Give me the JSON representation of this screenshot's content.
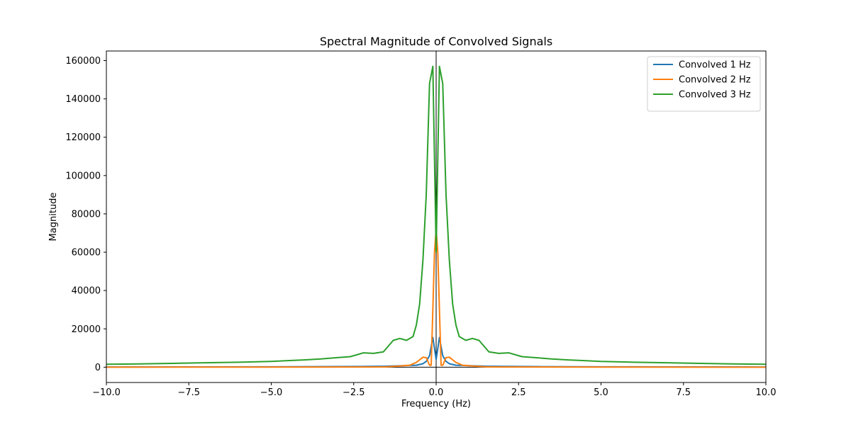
{
  "chart_data": {
    "type": "line",
    "title": "Spectral Magnitude of Convolved Signals",
    "xlabel": "Frequency (Hz)",
    "ylabel": "Magnitude",
    "xlim": [
      -10,
      10
    ],
    "ylim": [
      -8000,
      165000
    ],
    "xticks": [
      -10,
      -7.5,
      -5,
      -2.5,
      0,
      2.5,
      5,
      7.5,
      10
    ],
    "xtick_labels": [
      "−10.0",
      "−7.5",
      "−5.0",
      "−2.5",
      "0.0",
      "2.5",
      "5.0",
      "7.5",
      "10.0"
    ],
    "yticks": [
      0,
      20000,
      40000,
      60000,
      80000,
      100000,
      120000,
      140000,
      160000
    ],
    "ytick_labels": [
      "0",
      "20000",
      "40000",
      "60000",
      "80000",
      "100000",
      "120000",
      "140000",
      "160000"
    ],
    "grid": false,
    "legend_position": "top-right",
    "vline_x": 0,
    "hline_y": 0,
    "series": [
      {
        "name": "Convolved 1 Hz",
        "color": "#1f77b4",
        "x": [
          -10,
          -7.5,
          -5,
          -3,
          -2,
          -1.5,
          -1,
          -0.8,
          -0.6,
          -0.4,
          -0.3,
          -0.2,
          -0.1,
          0,
          0.1,
          0.2,
          0.3,
          0.4,
          0.6,
          0.8,
          1,
          1.5,
          2,
          3,
          5,
          7.5,
          10
        ],
        "y": [
          100,
          150,
          200,
          300,
          400,
          500,
          800,
          900,
          1000,
          1800,
          3000,
          6000,
          15500,
          4000,
          15500,
          6000,
          3000,
          1800,
          1000,
          900,
          800,
          500,
          400,
          300,
          200,
          150,
          100
        ]
      },
      {
        "name": "Convolved 2 Hz",
        "color": "#ff7f0e",
        "x": [
          -10,
          -5,
          -2,
          -1.5,
          -1.2,
          -0.8,
          -0.6,
          -0.4,
          -0.3,
          -0.2,
          -0.15,
          -0.1,
          -0.05,
          0,
          0.05,
          0.1,
          0.15,
          0.2,
          0.3,
          0.4,
          0.6,
          0.8,
          1.2,
          1.5,
          2,
          5,
          10
        ],
        "y": [
          0,
          50,
          100,
          200,
          500,
          1000,
          2500,
          5200,
          5000,
          1000,
          1000,
          30000,
          60000,
          72000,
          60000,
          30000,
          1000,
          1000,
          5000,
          5200,
          2500,
          1000,
          500,
          200,
          100,
          50,
          0
        ]
      },
      {
        "name": "Convolved 3 Hz",
        "color": "#2ca02c",
        "x": [
          -10,
          -9,
          -8,
          -7,
          -6,
          -5,
          -4.5,
          -4,
          -3.5,
          -3,
          -2.6,
          -2.2,
          -1.9,
          -1.6,
          -1.3,
          -1.1,
          -0.9,
          -0.7,
          -0.6,
          -0.5,
          -0.4,
          -0.3,
          -0.2,
          -0.1,
          0,
          0.1,
          0.2,
          0.3,
          0.4,
          0.5,
          0.6,
          0.7,
          0.9,
          1.1,
          1.3,
          1.6,
          1.9,
          2.2,
          2.6,
          3,
          3.5,
          4,
          4.5,
          5,
          6,
          7,
          8,
          9,
          10
        ],
        "y": [
          1500,
          1700,
          2000,
          2300,
          2600,
          3000,
          3400,
          3800,
          4300,
          5000,
          5500,
          7500,
          7200,
          8000,
          14000,
          15000,
          14000,
          16000,
          22000,
          33000,
          56000,
          90000,
          148000,
          157000,
          60000,
          157000,
          148000,
          90000,
          56000,
          33000,
          22000,
          16000,
          14000,
          15000,
          14000,
          8000,
          7200,
          7500,
          5500,
          5000,
          4300,
          3800,
          3400,
          3000,
          2600,
          2300,
          2000,
          1700,
          1500
        ]
      }
    ]
  }
}
